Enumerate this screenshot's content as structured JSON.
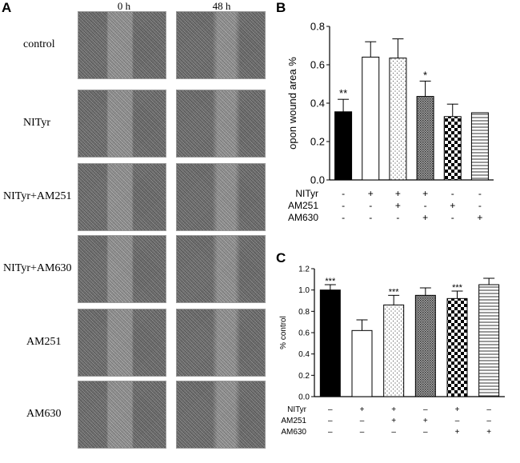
{
  "panels": {
    "a_letter": "A",
    "b_letter": "B",
    "c_letter": "C"
  },
  "micrographs": {
    "time_labels": [
      "0 h",
      "48 h"
    ],
    "rows": [
      "control",
      "NITyr",
      "NITyr+AM251",
      "NITyr+AM630",
      "AM251",
      "AM630"
    ]
  },
  "chart_data": [
    {
      "id": "B",
      "type": "bar",
      "ylabel": "opon wound area %",
      "ylim": [
        0,
        0.8
      ],
      "yticks": [
        "0.0",
        "0.2",
        "0.4",
        "0.6",
        "0.8"
      ],
      "values": [
        0.355,
        0.64,
        0.635,
        0.435,
        0.33,
        0.35
      ],
      "errors": [
        0.065,
        0.08,
        0.1,
        0.08,
        0.065,
        0.0
      ],
      "annotations": [
        "**",
        "",
        "",
        "*",
        "",
        ""
      ],
      "fills": [
        "black",
        "white",
        "dots",
        "dense",
        "checker",
        "hlines"
      ],
      "conditions": [
        {
          "label": "NITyr",
          "signs": [
            "-",
            "+",
            "+",
            "+",
            "-",
            "-"
          ]
        },
        {
          "label": "AM251",
          "signs": [
            "-",
            "-",
            "+",
            "-",
            "+",
            "-"
          ]
        },
        {
          "label": "AM630",
          "signs": [
            "-",
            "-",
            "-",
            "+",
            "-",
            "+"
          ]
        }
      ]
    },
    {
      "id": "C",
      "type": "bar",
      "ylabel": "% control",
      "ylim": [
        0,
        1.2
      ],
      "yticks": [
        "0.0",
        "0.2",
        "0.4",
        "0.6",
        "0.8",
        "1.0",
        "1.2"
      ],
      "values": [
        1.0,
        0.62,
        0.86,
        0.95,
        0.92,
        1.05
      ],
      "errors": [
        0.05,
        0.1,
        0.09,
        0.07,
        0.07,
        0.06
      ],
      "annotations": [
        "***",
        "",
        "***",
        "",
        "***",
        ""
      ],
      "fills": [
        "black",
        "white",
        "dots",
        "dense",
        "checker",
        "hlines"
      ],
      "conditions": [
        {
          "label": "NITyr",
          "signs": [
            "–",
            "+",
            "+",
            "–",
            "+",
            "–"
          ]
        },
        {
          "label": "AM251",
          "signs": [
            "–",
            "–",
            "+",
            "+",
            "–",
            "–"
          ]
        },
        {
          "label": "AM630",
          "signs": [
            "–",
            "–",
            "–",
            "–",
            "+",
            "+"
          ]
        }
      ]
    }
  ]
}
